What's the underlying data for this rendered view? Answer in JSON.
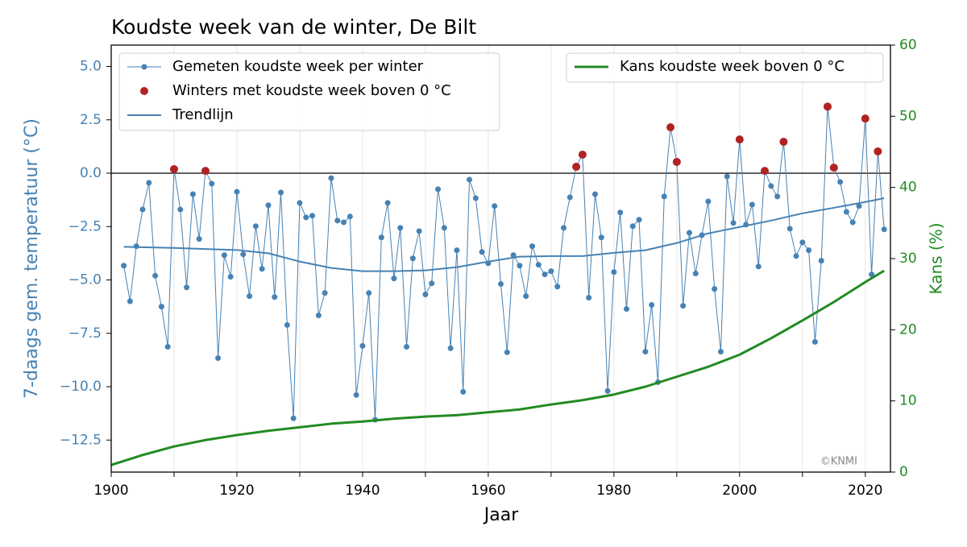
{
  "chart_data": {
    "type": "line",
    "title": "Koudste week van de winter, De Bilt",
    "xlabel": "Jaar",
    "ylabel": "7-daags gem. temperatuur (°C)",
    "y2label": "Kans (%)",
    "annotation": "©KNMI",
    "hline": 0,
    "xlim": [
      1900,
      2024
    ],
    "xticks": [
      1900,
      1920,
      1940,
      1960,
      1980,
      2000,
      2020
    ],
    "xminor_ticks": [
      1910,
      1930,
      1950,
      1970,
      1990,
      2010
    ],
    "ylim": [
      -14,
      6
    ],
    "yticks": [
      {
        "value": 5,
        "label": "5.0"
      },
      {
        "value": 2.5,
        "label": "2.5"
      },
      {
        "value": 0,
        "label": "0.0"
      },
      {
        "value": -2.5,
        "label": "−2.5"
      },
      {
        "value": -5,
        "label": "−5.0"
      },
      {
        "value": -7.5,
        "label": "−7.5"
      },
      {
        "value": -10,
        "label": "−10.0"
      },
      {
        "value": -12.5,
        "label": "−12.5"
      }
    ],
    "y2lim": [
      0,
      60
    ],
    "y2ticks": [
      0,
      10,
      20,
      30,
      40,
      50,
      60
    ],
    "grid": true,
    "legend_loc": "upper left",
    "y2_legend_loc": "upper right",
    "series": [
      {
        "name": "Gemeten koudste week per winter",
        "color": "#4682b4",
        "type": "line",
        "marker": true,
        "x": [
          1902,
          1903,
          1904,
          1905,
          1906,
          1907,
          1908,
          1909,
          1910,
          1911,
          1912,
          1913,
          1914,
          1915,
          1916,
          1917,
          1918,
          1919,
          1920,
          1921,
          1922,
          1923,
          1924,
          1925,
          1926,
          1927,
          1928,
          1929,
          1930,
          1931,
          1932,
          1933,
          1934,
          1935,
          1936,
          1937,
          1938,
          1939,
          1940,
          1941,
          1942,
          1943,
          1944,
          1945,
          1946,
          1947,
          1948,
          1949,
          1950,
          1951,
          1952,
          1953,
          1954,
          1955,
          1956,
          1957,
          1958,
          1959,
          1960,
          1961,
          1962,
          1963,
          1964,
          1965,
          1966,
          1967,
          1968,
          1969,
          1970,
          1971,
          1972,
          1973,
          1974,
          1975,
          1976,
          1977,
          1978,
          1979,
          1980,
          1981,
          1982,
          1983,
          1984,
          1985,
          1986,
          1987,
          1988,
          1989,
          1990,
          1991,
          1992,
          1993,
          1994,
          1995,
          1996,
          1997,
          1998,
          1999,
          2000,
          2001,
          2002,
          2003,
          2004,
          2005,
          2006,
          2007,
          2008,
          2009,
          2010,
          2011,
          2012,
          2013,
          2014,
          2015,
          2016,
          2017,
          2018,
          2019,
          2020,
          2021,
          2022,
          2023
        ],
        "values": [
          -4.33,
          -6.0,
          -3.42,
          -1.7,
          -0.45,
          -4.8,
          -6.25,
          -8.13,
          0.19,
          -1.7,
          -5.35,
          -0.98,
          -3.08,
          0.11,
          -0.49,
          -8.66,
          -3.84,
          -4.85,
          -0.87,
          -3.8,
          -5.76,
          -2.48,
          -4.48,
          -1.5,
          -5.8,
          -0.9,
          -7.11,
          -11.48,
          -1.39,
          -2.07,
          -1.99,
          -6.66,
          -5.61,
          -0.23,
          -2.22,
          -2.3,
          -2.03,
          -10.39,
          -8.09,
          -5.61,
          -11.55,
          -3.01,
          -1.39,
          -4.93,
          -2.56,
          -8.13,
          -3.99,
          -2.71,
          -5.68,
          -5.16,
          -0.75,
          -2.56,
          -8.2,
          -3.61,
          -10.24,
          -0.3,
          -1.17,
          -3.69,
          -4.22,
          -1.54,
          -5.19,
          -8.39,
          -3.84,
          -4.33,
          -5.76,
          -3.42,
          -4.29,
          -4.74,
          -4.59,
          -5.31,
          -2.56,
          -1.13,
          0.3,
          0.87,
          -5.83,
          -0.98,
          -3.01,
          -10.2,
          -4.63,
          -1.84,
          -6.36,
          -2.48,
          -2.18,
          -8.36,
          -6.17,
          -9.79,
          -1.09,
          2.15,
          0.53,
          -6.21,
          -2.79,
          -4.7,
          -2.9,
          -1.32,
          -5.42,
          -8.36,
          -0.15,
          -2.33,
          1.58,
          -2.41,
          -1.47,
          -4.37,
          0.11,
          -0.6,
          -1.09,
          1.47,
          -2.6,
          -3.88,
          -3.24,
          -3.61,
          -7.9,
          -4.1,
          3.12,
          0.26,
          -0.41,
          -1.81,
          -2.3,
          -1.54,
          2.56,
          -4.74,
          1.02,
          -2.63
        ]
      },
      {
        "name": "Winters met koudste week boven 0 °C",
        "color": "#b22222",
        "type": "scatter",
        "x": [
          1910,
          1915,
          1974,
          1975,
          1989,
          1990,
          2000,
          2004,
          2007,
          2014,
          2015,
          2020,
          2022
        ],
        "values": [
          0.19,
          0.11,
          0.3,
          0.87,
          2.15,
          0.53,
          1.58,
          0.11,
          1.47,
          3.12,
          0.26,
          2.56,
          1.02
        ]
      },
      {
        "name": "Trendlijn",
        "color": "#4682b4",
        "type": "line",
        "x": [
          1902,
          1910,
          1915,
          1920,
          1925,
          1930,
          1935,
          1940,
          1945,
          1950,
          1955,
          1960,
          1965,
          1970,
          1975,
          1980,
          1985,
          1990,
          1995,
          2000,
          2005,
          2010,
          2015,
          2020,
          2023
        ],
        "values": [
          -3.45,
          -3.5,
          -3.55,
          -3.6,
          -3.75,
          -4.14,
          -4.44,
          -4.59,
          -4.59,
          -4.55,
          -4.4,
          -4.14,
          -3.91,
          -3.88,
          -3.88,
          -3.73,
          -3.61,
          -3.27,
          -2.82,
          -2.52,
          -2.22,
          -1.88,
          -1.62,
          -1.35,
          -1.17
        ]
      },
      {
        "name": "Kans koudste week boven 0 °C",
        "color": "#228b22",
        "type": "line",
        "axis": "y2",
        "x": [
          1900,
          1905,
          1910,
          1915,
          1920,
          1925,
          1930,
          1935,
          1940,
          1945,
          1950,
          1955,
          1960,
          1965,
          1970,
          1975,
          1980,
          1985,
          1990,
          1995,
          2000,
          2005,
          2010,
          2015,
          2020,
          2023
        ],
        "values": [
          1.0,
          2.4,
          3.6,
          4.5,
          5.2,
          5.8,
          6.3,
          6.8,
          7.1,
          7.5,
          7.8,
          8.0,
          8.4,
          8.8,
          9.5,
          10.1,
          10.9,
          12.0,
          13.4,
          14.8,
          16.5,
          18.8,
          21.3,
          23.9,
          26.7,
          28.3
        ]
      }
    ]
  }
}
